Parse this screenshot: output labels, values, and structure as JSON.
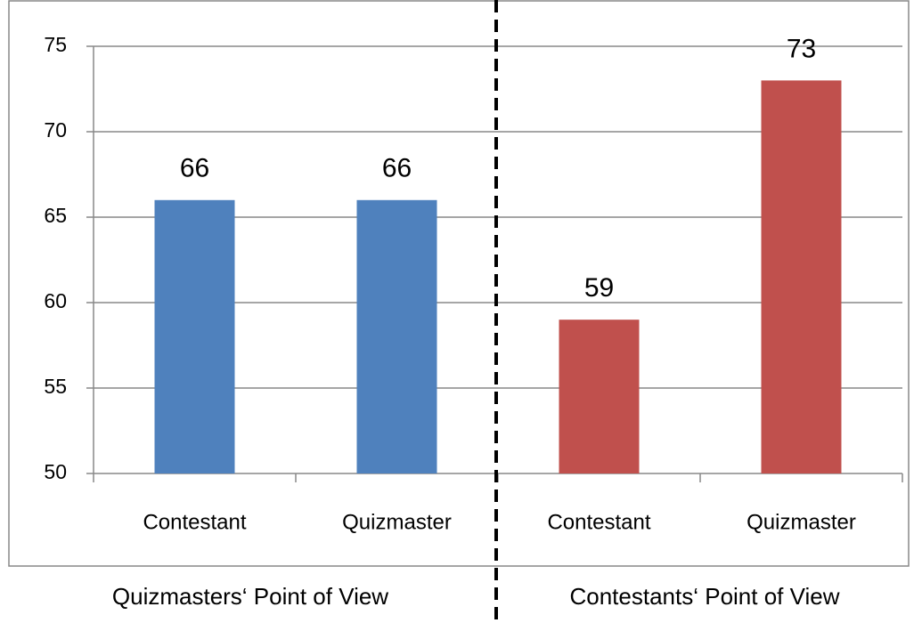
{
  "chart_data": {
    "type": "bar",
    "categories": [
      "Contestant",
      "Quizmaster",
      "Contestant",
      "Quizmaster"
    ],
    "values": [
      66,
      66,
      59,
      73
    ],
    "colors": [
      "#4f81bd",
      "#4f81bd",
      "#c0504d",
      "#c0504d"
    ],
    "group_labels": [
      "Quizmasters‘ Point of View",
      "Contestants‘ Point of View"
    ],
    "ylim": [
      50,
      75
    ],
    "yticks": [
      50,
      55,
      60,
      65,
      70,
      75
    ],
    "grid": true
  }
}
